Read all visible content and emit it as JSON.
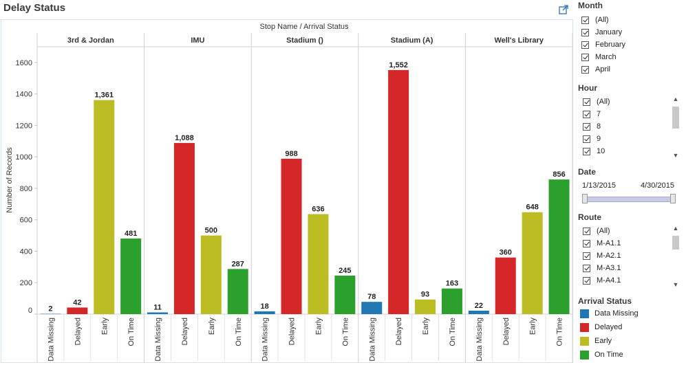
{
  "title": "Delay Status",
  "chart_data": {
    "type": "bar",
    "header": "Stop Name  /  Arrival Status",
    "ylabel": "Number of Records",
    "ylim": [
      0,
      1700
    ],
    "yticks": [
      0,
      200,
      400,
      600,
      800,
      1000,
      1200,
      1400,
      1600
    ],
    "grid": false,
    "categories": [
      "Data Missing",
      "Delayed",
      "Early",
      "On Time"
    ],
    "colors": [
      "#1f77b4",
      "#d62728",
      "#bcbd22",
      "#2ca02c"
    ],
    "panels": [
      {
        "name": "3rd & Jordan",
        "values": [
          2,
          42,
          1361,
          481
        ],
        "labels": [
          "2",
          "42",
          "1,361",
          "481"
        ]
      },
      {
        "name": "IMU",
        "values": [
          11,
          1088,
          500,
          287
        ],
        "labels": [
          "11",
          "1,088",
          "500",
          "287"
        ]
      },
      {
        "name": "Stadium ()",
        "values": [
          18,
          988,
          636,
          245
        ],
        "labels": [
          "18",
          "988",
          "636",
          "245"
        ]
      },
      {
        "name": "Stadium (A)",
        "values": [
          78,
          1552,
          93,
          163
        ],
        "labels": [
          "78",
          "1,552",
          "93",
          "163"
        ]
      },
      {
        "name": "Well's Library",
        "values": [
          22,
          360,
          648,
          856
        ],
        "labels": [
          "22",
          "360",
          "648",
          "856"
        ]
      }
    ]
  },
  "filters": {
    "month": {
      "title": "Month",
      "items": [
        "(All)",
        "January",
        "February",
        "March",
        "April"
      ]
    },
    "hour": {
      "title": "Hour",
      "items": [
        "(All)",
        "7",
        "8",
        "9",
        "10"
      ]
    },
    "date": {
      "title": "Date",
      "start": "1/13/2015",
      "end": "4/30/2015"
    },
    "route": {
      "title": "Route",
      "items": [
        "(All)",
        "M-A1.1",
        "M-A2.1",
        "M-A3.1",
        "M-A4.1"
      ]
    }
  },
  "legend": {
    "title": "Arrival Status",
    "items": [
      {
        "label": "Data Missing",
        "color": "#1f77b4"
      },
      {
        "label": "Delayed",
        "color": "#d62728"
      },
      {
        "label": "Early",
        "color": "#bcbd22"
      },
      {
        "label": "On Time",
        "color": "#2ca02c"
      }
    ]
  }
}
